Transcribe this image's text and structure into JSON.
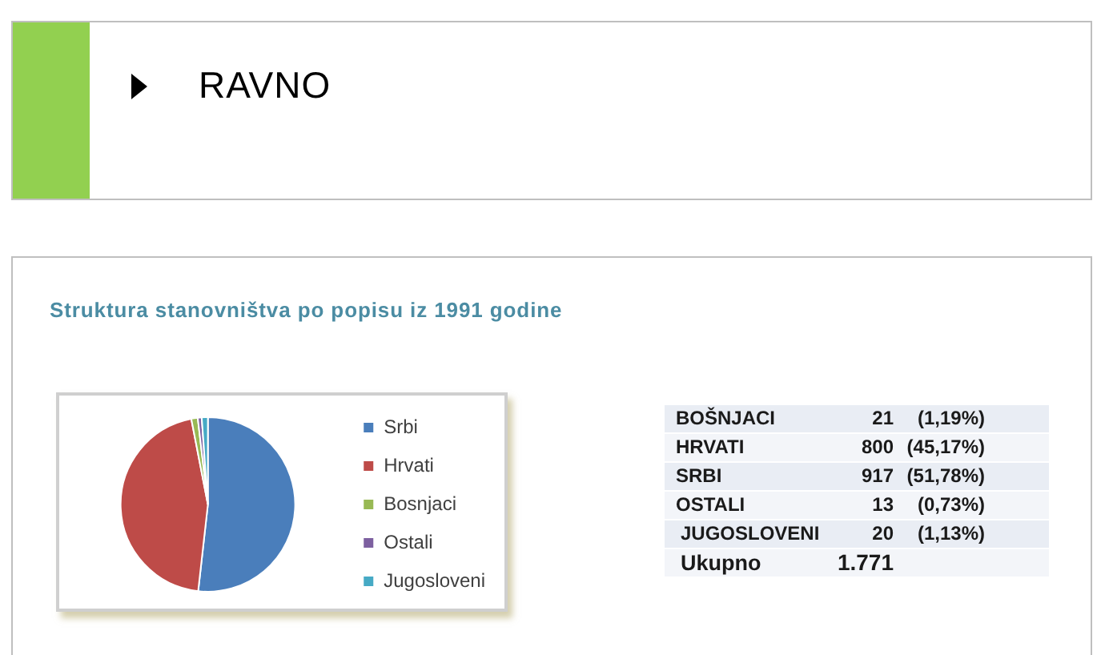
{
  "chart_data": {
    "type": "pie",
    "title": "RAVNO",
    "subtitle": "Struktura stanovništva po popisu iz 1991 godine",
    "categories": [
      "Srbi",
      "Hrvati",
      "Bosnjaci",
      "Ostali",
      "Jugosloveni"
    ],
    "values": [
      51.78,
      45.17,
      1.19,
      0.73,
      1.13
    ],
    "colors": [
      "#4a7ebb",
      "#be4b48",
      "#98b954",
      "#7d60a0",
      "#46aac5"
    ],
    "legend": "right",
    "annotations": [
      "BOŠNJACI",
      "21 (1,19%)",
      "HRVATI",
      "800 (45,17%)",
      "SRBI",
      "917 (51,78%)",
      "OSTALI",
      "13 (0,73%)",
      "JUGOSLOVENI",
      "20 (1,13%)",
      "Ukupno",
      "1.771"
    ]
  }
}
